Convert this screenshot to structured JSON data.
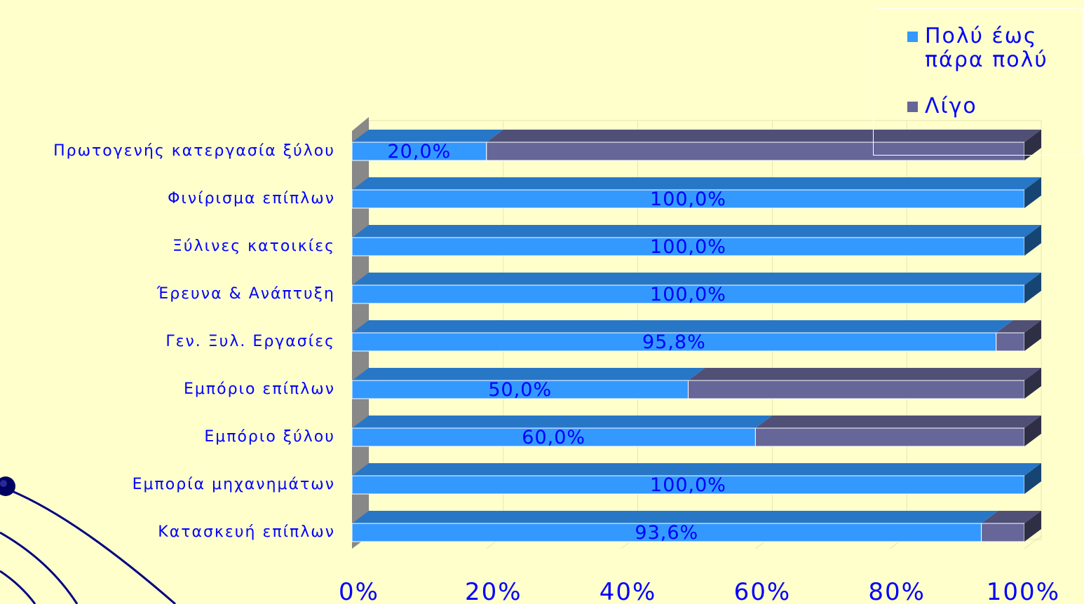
{
  "colors": {
    "background": "#ffffcc",
    "series_main": "#3399ff",
    "series_other": "#666699",
    "text": "#0000ff"
  },
  "legend": {
    "items": [
      {
        "label": "Πολύ έως\nπάρα πολύ",
        "color": "#3399ff"
      },
      {
        "label": "Λίγο",
        "color": "#666699"
      }
    ]
  },
  "chart_data": {
    "type": "bar",
    "orientation": "horizontal",
    "stacked": "percent",
    "style": "3d",
    "categories": [
      "Πρωτογενής κατεργασία ξύλου",
      "Φινίρισμα επίπλων",
      "Ξύλινες κατοικίες",
      "Έρευνα & Ανάπτυξη",
      "Γεν. Ξυλ. Εργασίες",
      "Εμπόριο επίπλων",
      "Εμπόριο ξύλου",
      "Εμπορία μηχανημάτων",
      "Κατασκευή επίπλων"
    ],
    "series": [
      {
        "name": "Πολύ έως πάρα πολύ",
        "values": [
          20.0,
          100.0,
          100.0,
          100.0,
          95.8,
          50.0,
          60.0,
          100.0,
          93.6
        ]
      },
      {
        "name": "Λίγο",
        "values": [
          80.0,
          0.0,
          0.0,
          0.0,
          4.2,
          50.0,
          40.0,
          0.0,
          6.4
        ]
      }
    ],
    "data_labels": [
      "20,0%",
      "100,0%",
      "100,0%",
      "100,0%",
      "95,8%",
      "50,0%",
      "60,0%",
      "100,0%",
      "93,6%"
    ],
    "x_ticks": [
      "0%",
      "20%",
      "40%",
      "60%",
      "80%",
      "100%"
    ],
    "xlim": [
      0,
      100
    ],
    "grid": true,
    "legend_position": "top-right"
  }
}
